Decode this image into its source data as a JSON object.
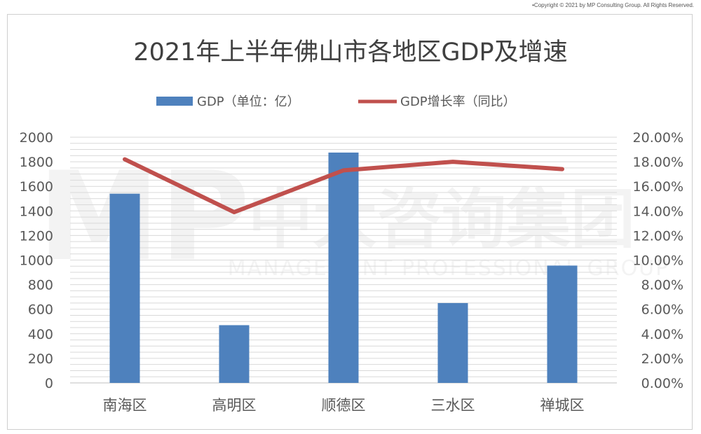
{
  "copyright": "•Copyright © 2021 by MP Consulting Group. All Rights Reserved.",
  "watermark": {
    "logo": "MP",
    "cn": "中大咨询集团",
    "en": "MANAGEMENT PROFESSIONAL GROUP"
  },
  "colors": {
    "bar": "#4e81bd",
    "line": "#c0504d",
    "grid": "#d9d9d9",
    "text": "#595959",
    "title": "#404040",
    "frame": "#cfcfcf",
    "watermark": "#f3f3f3"
  },
  "chart_data": {
    "type": "bar",
    "title": "2021年上半年佛山市各地区GDP及增速",
    "categories": [
      "南海区",
      "高明区",
      "顺德区",
      "三水区",
      "禅城区"
    ],
    "series": [
      {
        "name": "GDP（单位：亿）",
        "type": "bar",
        "axis": "left",
        "values": [
          1540,
          470,
          1875,
          650,
          955
        ]
      },
      {
        "name": "GDP增长率（同比）",
        "type": "line",
        "axis": "right",
        "values": [
          18.2,
          13.9,
          17.3,
          18.0,
          17.4
        ]
      }
    ],
    "y_left": {
      "lim": [
        0,
        2000
      ],
      "ticks": [
        "2000",
        "1800",
        "1600",
        "1400",
        "1200",
        "1000",
        "800",
        "600",
        "400",
        "200",
        "0"
      ]
    },
    "y_right": {
      "lim": [
        0,
        20
      ],
      "ticks": [
        "20.00%",
        "18.00%",
        "16.00%",
        "14.00%",
        "12.00%",
        "10.00%",
        "8.00%",
        "6.00%",
        "4.00%",
        "2.00%",
        "0.00%"
      ]
    },
    "grid": true,
    "legend": "top"
  }
}
